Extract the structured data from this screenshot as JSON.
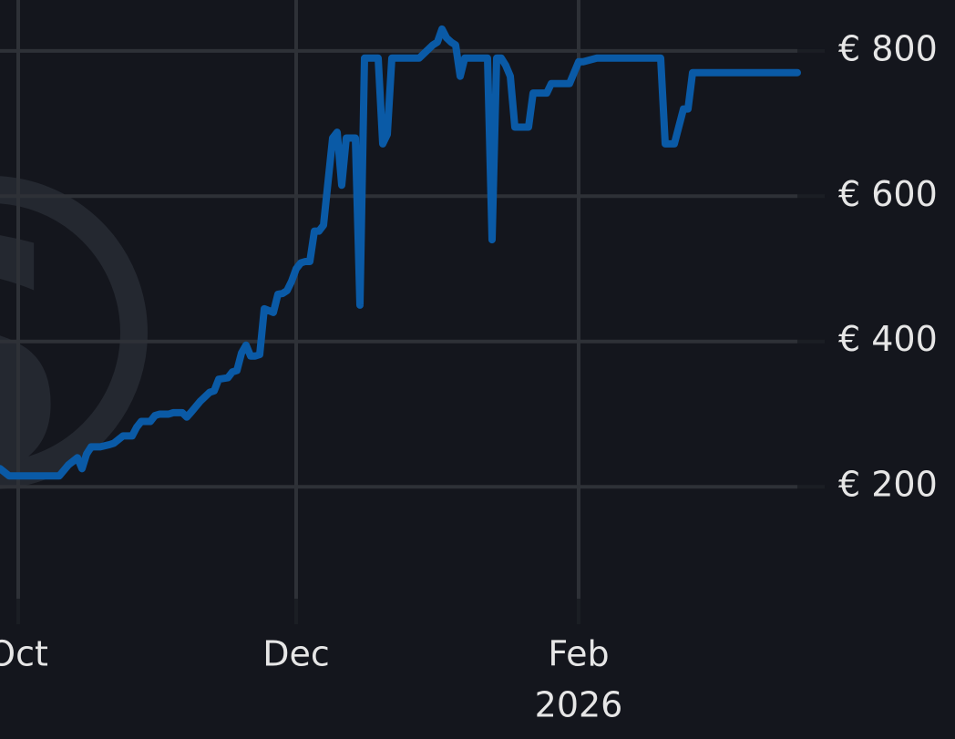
{
  "chart_data": {
    "type": "line",
    "title": "",
    "xlabel": "",
    "ylabel": "",
    "x_ticks": [
      {
        "date": "2025-10-01",
        "label": "Oct"
      },
      {
        "date": "2025-12-01",
        "label": "Dec"
      },
      {
        "date": "2026-02-01",
        "label": "Feb"
      }
    ],
    "x_year_label": "2026",
    "y_ticks": [
      200,
      400,
      600,
      800
    ],
    "y_tick_format": "€ {v}",
    "y_axis_position": "right",
    "xlim": [
      "2025-09-27",
      "2026-03-21"
    ],
    "ylim": [
      46,
      870
    ],
    "grid": true,
    "legend": "none",
    "colors": {
      "background": "#14161d",
      "grid": "#2e3137",
      "line": "#0a5aa6",
      "text": "#e6e6e6",
      "watermark": "#242830"
    },
    "watermark": {
      "icon": "dollar-circle-icon",
      "glyph": "$"
    },
    "series": [
      {
        "x": [
          "2025-09-27",
          "2025-09-29",
          "2025-10-05",
          "2025-10-10",
          "2025-10-12",
          "2025-10-14",
          "2025-10-15",
          "2025-10-16",
          "2025-10-17",
          "2025-10-19",
          "2025-10-21",
          "2025-10-22",
          "2025-10-23",
          "2025-10-24",
          "2025-10-26",
          "2025-10-27",
          "2025-10-28",
          "2025-10-30",
          "2025-10-31",
          "2025-11-01",
          "2025-11-03",
          "2025-11-04",
          "2025-11-06",
          "2025-11-07",
          "2025-11-08",
          "2025-11-10",
          "2025-11-12",
          "2025-11-13",
          "2025-11-14",
          "2025-11-16",
          "2025-11-17",
          "2025-11-18",
          "2025-11-19",
          "2025-11-20",
          "2025-11-21",
          "2025-11-22",
          "2025-11-23",
          "2025-11-24",
          "2025-11-26",
          "2025-11-27",
          "2025-11-28",
          "2025-11-29",
          "2025-11-30",
          "2025-12-01",
          "2025-12-02",
          "2025-12-03",
          "2025-12-04",
          "2025-12-05",
          "2025-12-06",
          "2025-12-07",
          "2025-12-08",
          "2025-12-09",
          "2025-12-10",
          "2025-12-11",
          "2025-12-12",
          "2025-12-13",
          "2025-12-14",
          "2025-12-15",
          "2025-12-16",
          "2025-12-17",
          "2025-12-18",
          "2025-12-19",
          "2025-12-20",
          "2025-12-21",
          "2025-12-22",
          "2025-12-23",
          "2025-12-25",
          "2025-12-26",
          "2025-12-26",
          "2025-12-27",
          "2025-12-28",
          "2025-12-31",
          "2026-01-01",
          "2026-01-02",
          "2026-01-03",
          "2026-01-04",
          "2026-01-05",
          "2026-01-06",
          "2026-01-07",
          "2026-01-08",
          "2026-01-09",
          "2026-01-10",
          "2026-01-11",
          "2026-01-12",
          "2026-01-13",
          "2026-01-14",
          "2026-01-15",
          "2026-01-16",
          "2026-01-17",
          "2026-01-18",
          "2026-01-19",
          "2026-01-20",
          "2026-01-21",
          "2026-01-22",
          "2026-01-23",
          "2026-01-24",
          "2026-01-25",
          "2026-01-26",
          "2026-01-28",
          "2026-01-29",
          "2026-01-30",
          "2026-02-01",
          "2026-02-02",
          "2026-02-05",
          "2026-02-06",
          "2026-02-07",
          "2026-02-09",
          "2026-02-11",
          "2026-02-12",
          "2026-02-13",
          "2026-02-14",
          "2026-02-19",
          "2026-02-20",
          "2026-02-21",
          "2026-02-22",
          "2026-02-24",
          "2026-02-25",
          "2026-02-26",
          "2026-02-27",
          "2026-03-21"
        ],
        "y": [
          225,
          215,
          215,
          215,
          230,
          240,
          225,
          245,
          255,
          255,
          258,
          260,
          265,
          270,
          270,
          282,
          290,
          290,
          298,
          300,
          300,
          302,
          302,
          296,
          303,
          318,
          330,
          332,
          348,
          350,
          358,
          360,
          384,
          395,
          380,
          380,
          382,
          445,
          440,
          465,
          466,
          470,
          483,
          500,
          508,
          510,
          510,
          552,
          552,
          560,
          620,
          680,
          688,
          615,
          680,
          680,
          680,
          450,
          790,
          790,
          790,
          790,
          672,
          685,
          790,
          790,
          790,
          790,
          790,
          790,
          790,
          808,
          812,
          830,
          818,
          812,
          808,
          765,
          790,
          790,
          790,
          790,
          790,
          790,
          540,
          790,
          790,
          780,
          765,
          695,
          695,
          695,
          695,
          742,
          742,
          742,
          742,
          755,
          755,
          755,
          755,
          785,
          785,
          790,
          790,
          790,
          790,
          790,
          790,
          790,
          790,
          790,
          672,
          672,
          672,
          720,
          720,
          770,
          770,
          770
        ]
      }
    ]
  }
}
